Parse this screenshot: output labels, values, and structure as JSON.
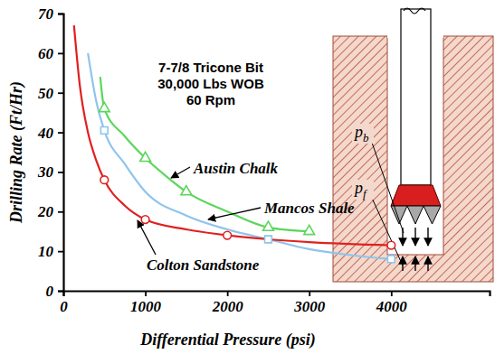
{
  "chart_data": {
    "type": "line",
    "xlabel": "Differential Pressure (psi)",
    "ylabel": "Drilling Rate (Ft/Hr)",
    "annotations": [
      "7-7/8 Tricone Bit",
      "30,000 Lbs WOB",
      "60 Rpm"
    ],
    "xlim": [
      0,
      5200
    ],
    "xticks": [
      0,
      1000,
      2000,
      3000,
      4000
    ],
    "ylim": [
      0,
      70
    ],
    "yticks": [
      0,
      10,
      20,
      30,
      40,
      50,
      60,
      70
    ],
    "grid": false,
    "series": [
      {
        "name": "Austin Chalk",
        "type": "line",
        "color": "#5cd65c",
        "x": [
          450,
          500,
          750,
          1000,
          1250,
          1500,
          2000,
          2500,
          3000
        ],
        "values": [
          54,
          46,
          39,
          33.5,
          29,
          25,
          20,
          16,
          15
        ]
      },
      {
        "name": "Mancos Shale",
        "type": "line",
        "color": "#8fc4ec",
        "x": [
          300,
          400,
          500,
          750,
          1000,
          1500,
          2000,
          2500,
          3000,
          3500,
          4000
        ],
        "values": [
          60,
          48,
          40.5,
          32,
          25,
          19,
          15.5,
          13,
          10.5,
          9,
          8
        ]
      },
      {
        "name": "Colton Sandstone",
        "type": "line",
        "color": "#e02020",
        "x": [
          130,
          200,
          300,
          400,
          500,
          750,
          1000,
          1500,
          2000,
          2500,
          3000,
          4000
        ],
        "values": [
          67,
          52,
          40,
          33,
          28,
          21.5,
          18,
          15.5,
          14,
          13,
          12.3,
          11.5
        ]
      },
      {
        "type": "scatter",
        "marker": "triangle",
        "color": "#5cd65c",
        "x": [
          500,
          1000,
          1500,
          2500,
          3000
        ],
        "values": [
          46,
          33.5,
          25,
          16,
          15
        ]
      },
      {
        "type": "scatter",
        "marker": "square",
        "color": "#8fc4ec",
        "x": [
          500,
          2500,
          4000
        ],
        "values": [
          40.5,
          13,
          8
        ]
      },
      {
        "type": "scatter",
        "marker": "circle",
        "color": "#e02020",
        "x": [
          500,
          1000,
          2000,
          4000
        ],
        "values": [
          28,
          18,
          14,
          11.5
        ]
      }
    ]
  },
  "diagram": {
    "labels": [
      {
        "text": "p",
        "subscript": "b"
      },
      {
        "text": "p",
        "subscript": "f"
      }
    ]
  }
}
